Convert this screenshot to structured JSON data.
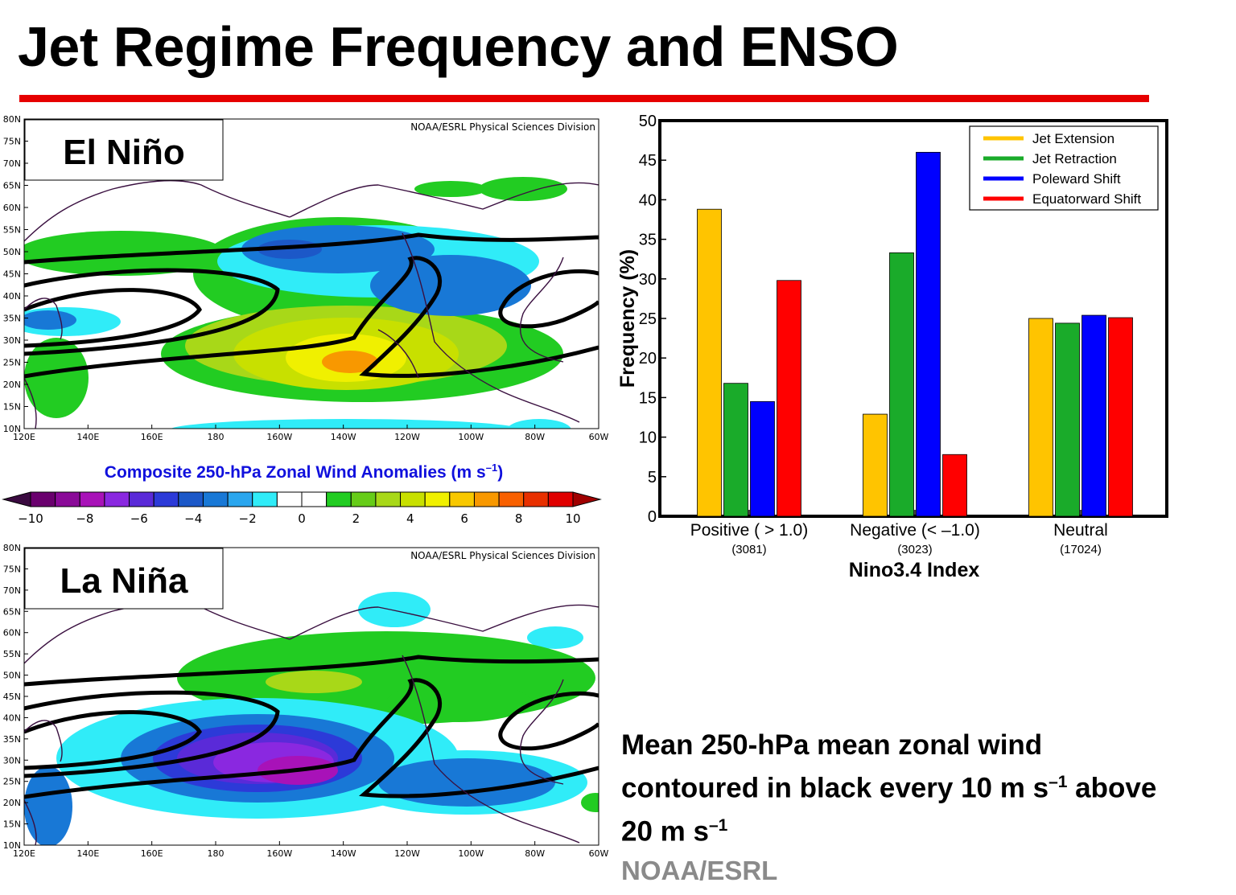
{
  "slide": {
    "title": "Jet Regime Frequency and ENSO",
    "accent_color": "#e60000"
  },
  "maps": [
    {
      "panel_label": "El Niño",
      "credit": "NOAA/ESRL Physical Sciences Division",
      "lat_labels": [
        "80N",
        "75N",
        "70N",
        "65N",
        "60N",
        "55N",
        "50N",
        "45N",
        "40N",
        "35N",
        "30N",
        "25N",
        "20N",
        "15N",
        "10N"
      ],
      "lon_labels": [
        "120E",
        "140E",
        "160E",
        "180",
        "160W",
        "140W",
        "120W",
        "100W",
        "80W",
        "60W"
      ]
    },
    {
      "panel_label": "La Niña",
      "credit": "NOAA/ESRL Physical Sciences Division",
      "lat_labels": [
        "80N",
        "75N",
        "70N",
        "65N",
        "60N",
        "55N",
        "50N",
        "45N",
        "40N",
        "35N",
        "30N",
        "25N",
        "20N",
        "15N",
        "10N"
      ],
      "lon_labels": [
        "120E",
        "140E",
        "160E",
        "180",
        "160W",
        "140W",
        "120W",
        "100W",
        "80W",
        "60W"
      ]
    }
  ],
  "colorbar": {
    "title": "Composite 250-hPa Zonal Wind Anomalies (m s",
    "title_sup": "–1",
    "title_end": ")",
    "tick_labels": [
      "−10",
      "−8",
      "−6",
      "−4",
      "−2",
      "0",
      "2",
      "4",
      "6",
      "8",
      "10"
    ],
    "colors": [
      "#3a0a40",
      "#6a006e",
      "#8a0a98",
      "#a812b8",
      "#8a28e0",
      "#5a2ad8",
      "#2c3ad8",
      "#1c58c8",
      "#1878d6",
      "#2aa6ee",
      "#30ecf8",
      "#ffffff",
      "#ffffff",
      "#22cc22",
      "#66cc18",
      "#a8d818",
      "#c8e000",
      "#f0f000",
      "#f8c800",
      "#f89800",
      "#f86000",
      "#e83000",
      "#e00000",
      "#a00000"
    ]
  },
  "description": {
    "line1": "Mean 250-hPa mean zonal wind",
    "line2a": "contoured in black every 10 m s",
    "line2_sup": "–1",
    "line2b": " above",
    "line3a": "20 m s",
    "line3_sup": "–1"
  },
  "source": "NOAA/ESRL",
  "chart_data": {
    "type": "bar",
    "xlabel": "Nino3.4 Index",
    "ylabel": "Frequency (%)",
    "ylim": [
      0,
      50
    ],
    "yticks": [
      0,
      5,
      10,
      15,
      20,
      25,
      30,
      35,
      40,
      45,
      50
    ],
    "legend_position": "top-right",
    "categories": [
      "Positive ( > 1.0)",
      "Negative (< –1.0)",
      "Neutral"
    ],
    "category_counts": [
      "(3081)",
      "(3023)",
      "(17024)"
    ],
    "series": [
      {
        "name": "Jet Extension",
        "color": "#ffc400",
        "values": [
          38.8,
          12.9,
          25.0
        ]
      },
      {
        "name": "Jet Retraction",
        "color": "#1aab2a",
        "values": [
          16.8,
          33.3,
          24.4
        ]
      },
      {
        "name": "Poleward Shift",
        "color": "#0000ff",
        "values": [
          14.5,
          46.0,
          25.4
        ]
      },
      {
        "name": "Equatorward Shift",
        "color": "#ff0000",
        "values": [
          29.8,
          7.8,
          25.1
        ]
      }
    ]
  }
}
